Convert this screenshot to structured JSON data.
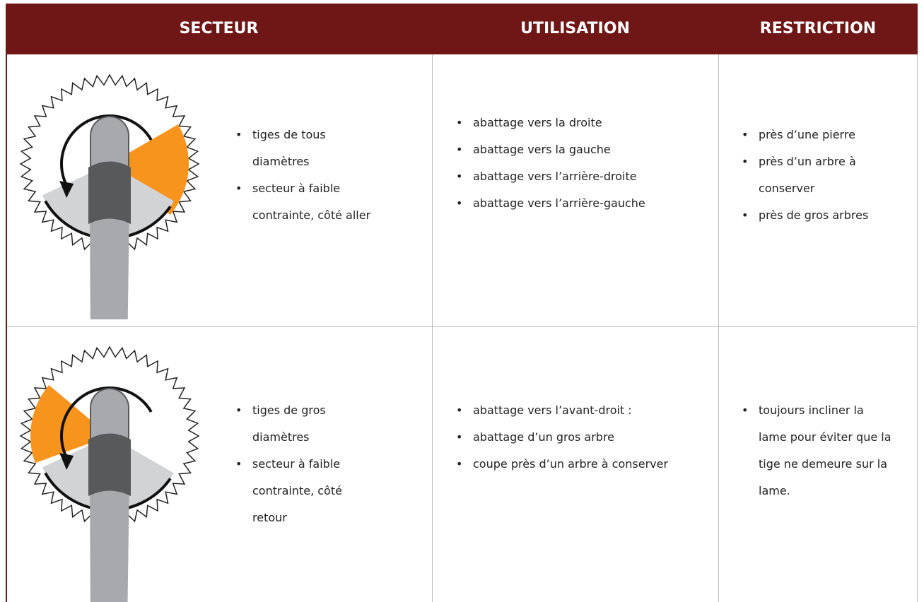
{
  "table": {
    "header": [
      "SECTEUR",
      "UTILISATION",
      "RESTRICTION"
    ],
    "rows": [
      [
        [
          "tiges de tous diamètres",
          "secteur à faible contrainte, côté aller"
        ],
        [
          "abattage vers la droite",
          "abattage vers la gauche",
          "abattage vers l’arrière-droite",
          "abattage vers l’arrière-gauche"
        ],
        [
          "près d’une pierre",
          "près d’un arbre à conserver",
          "près de gros arbres"
        ]
      ],
      [
        [
          "tiges de gros diamètres",
          "secteur à faible contrainte, côté retour"
        ],
        [
          "abattage vers l’avant-droit :",
          "abattage d’un gros arbre",
          "coupe près d’un arbre à conserver"
        ],
        [
          "toujours incliner la lame pour éviter que la tige ne demeure sur la lame."
        ]
      ]
    ]
  }
}
